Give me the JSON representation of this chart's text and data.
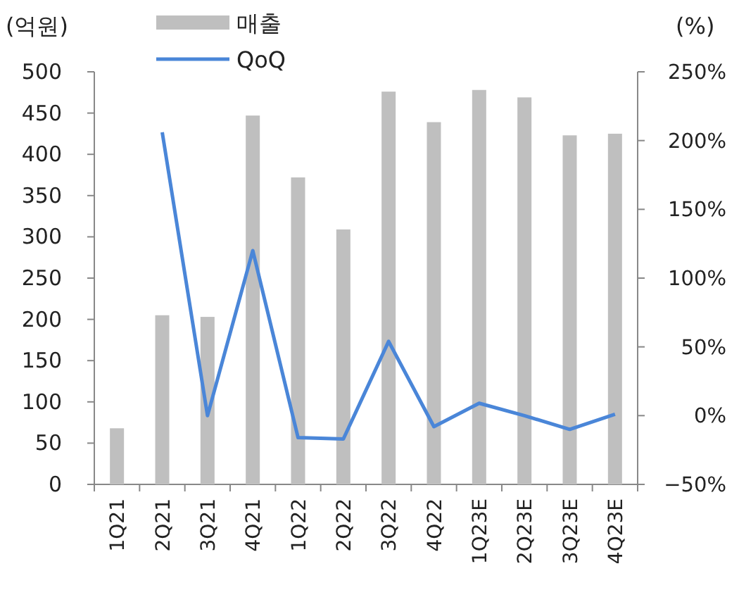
{
  "chart_data": {
    "type": "bar",
    "ylabel": "(억원)",
    "y2label": "(%)",
    "categories": [
      "1Q21",
      "2Q21",
      "3Q21",
      "4Q21",
      "1Q22",
      "2Q22",
      "3Q22",
      "4Q22",
      "1Q23E",
      "2Q23E",
      "3Q23E",
      "4Q23E"
    ],
    "series": [
      {
        "name": "매출",
        "color": "#bfbfbf",
        "values": [
          68,
          205,
          203,
          447,
          372,
          309,
          476,
          439,
          478,
          469,
          423,
          425
        ]
      },
      {
        "name": "QoQ",
        "type": "line",
        "axis": "y2",
        "color": "#4a86d8",
        "values": [
          null,
          206,
          0,
          120,
          -16,
          -17,
          54,
          -8,
          9,
          0,
          -10,
          1
        ]
      }
    ],
    "ylim": [
      0,
      500
    ],
    "yticks": [
      0,
      50,
      100,
      150,
      200,
      250,
      300,
      350,
      400,
      450,
      500
    ],
    "y2lim": [
      -50,
      250
    ],
    "y2ticks": [
      {
        "value": -50,
        "label": "−50%"
      },
      {
        "value": 0,
        "label": "0%"
      },
      {
        "value": 50,
        "label": "50%"
      },
      {
        "value": 100,
        "label": "100%"
      },
      {
        "value": 150,
        "label": "150%"
      },
      {
        "value": 200,
        "label": "200%"
      },
      {
        "value": 250,
        "label": "250%"
      }
    ],
    "legend": "top",
    "grid": false,
    "marker": "none",
    "line_style": "solid"
  }
}
